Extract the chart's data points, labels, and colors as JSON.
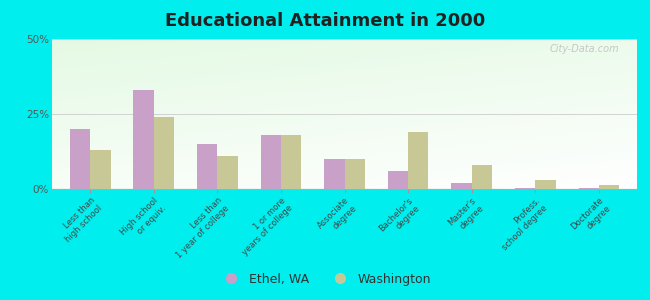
{
  "title": "Educational Attainment in 2000",
  "categories": [
    "Less than\nhigh school",
    "High school\nor equiv.",
    "Less than\n1 year of college",
    "1 or more\nyears of college",
    "Associate\ndegree",
    "Bachelor's\ndegree",
    "Master's\ndegree",
    "Profess.\nschool degree",
    "Doctorate\ndegree"
  ],
  "ethel_values": [
    20,
    33,
    15,
    18,
    10,
    6,
    2,
    0.5,
    0.2
  ],
  "washington_values": [
    13,
    24,
    11,
    18,
    10,
    19,
    8,
    3,
    1.5
  ],
  "ethel_color": "#c8a0c8",
  "washington_color": "#c8c896",
  "ylim": [
    0,
    50
  ],
  "yticks": [
    0,
    25,
    50
  ],
  "ytick_labels": [
    "0%",
    "25%",
    "50%"
  ],
  "outer_background": "#00eeee",
  "legend_labels": [
    "Ethel, WA",
    "Washington"
  ],
  "watermark": "City-Data.com"
}
